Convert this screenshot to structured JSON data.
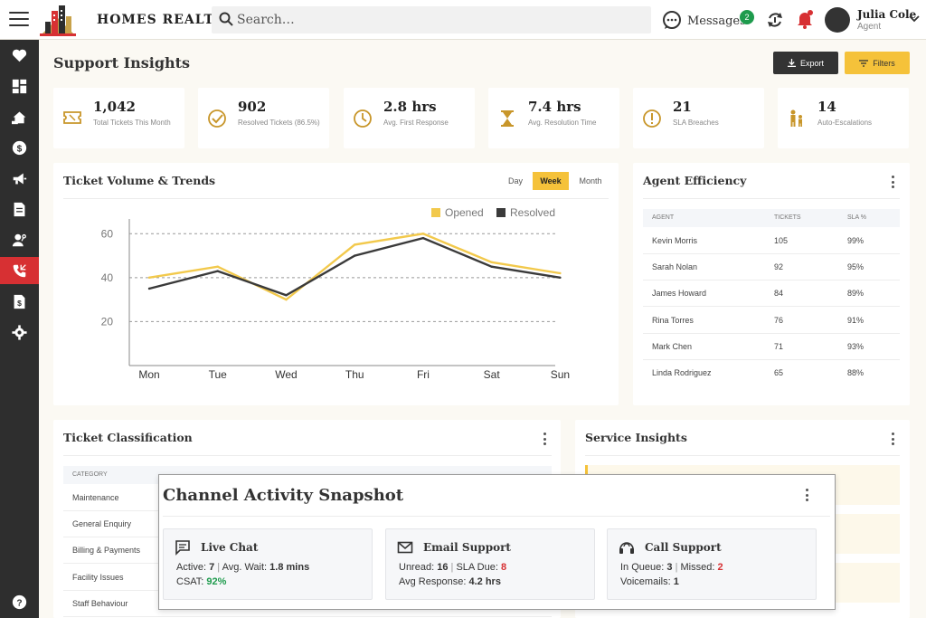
{
  "header": {
    "brand": "HOMES REALTY",
    "search_placeholder": "Search…",
    "messages_label": "Messages",
    "messages_count": "2",
    "user_name": "Julia Cole",
    "user_role": "Agent"
  },
  "sidebar": {
    "icons": [
      "heart-icon",
      "dashboard-icon",
      "properties-icon",
      "finance-icon",
      "megaphone-icon",
      "document-icon",
      "user-key-icon",
      "phone-support-icon",
      "invoice-icon",
      "gear-icon"
    ],
    "active_index": 7,
    "help_icon": "help-icon"
  },
  "page": {
    "title": "Support Insights",
    "export_label": "Export",
    "filters_label": "Filters"
  },
  "kpis": [
    {
      "icon": "ticket-icon",
      "value": "1,042",
      "label": "Total Tickets This Month"
    },
    {
      "icon": "check-circle-icon",
      "value": "902",
      "label": "Resolved Tickets (86.5%)"
    },
    {
      "icon": "clock-icon",
      "value": "2.8 hrs",
      "label": "Avg. First Response"
    },
    {
      "icon": "hourglass-icon",
      "value": "7.4 hrs",
      "label": "Avg. Resolution Time"
    },
    {
      "icon": "alert-circle-icon",
      "value": "21",
      "label": "SLA Breaches"
    },
    {
      "icon": "escalation-icon",
      "value": "14",
      "label": "Auto-Escalations"
    }
  ],
  "volume_card": {
    "title": "Ticket Volume & Trends",
    "periods": [
      "Day",
      "Week",
      "Month"
    ],
    "active_period": "Week"
  },
  "chart_data": {
    "type": "line",
    "title": "",
    "xlabel": "",
    "ylabel": "",
    "categories": [
      "Mon",
      "Tue",
      "Wed",
      "Thu",
      "Fri",
      "Sat",
      "Sun"
    ],
    "yticks": [
      20,
      40,
      60
    ],
    "ylim": [
      0,
      70
    ],
    "grid": true,
    "legend": "top-right",
    "series": [
      {
        "name": "Opened",
        "color": "#f2c94c",
        "values": [
          40,
          45,
          30,
          55,
          60,
          47,
          42
        ]
      },
      {
        "name": "Resolved",
        "color": "#3a3a3a",
        "values": [
          35,
          43,
          32,
          50,
          58,
          45,
          40
        ]
      }
    ]
  },
  "agent_card": {
    "title": "Agent Efficiency",
    "columns": [
      "AGENT",
      "TICKETS",
      "SLA %"
    ],
    "rows": [
      [
        "Kevin Morris",
        "105",
        "99%"
      ],
      [
        "Sarah Nolan",
        "92",
        "95%"
      ],
      [
        "James Howard",
        "84",
        "89%"
      ],
      [
        "Rina Torres",
        "76",
        "91%"
      ],
      [
        "Mark Chen",
        "71",
        "93%"
      ],
      [
        "Linda Rodriguez",
        "65",
        "88%"
      ]
    ]
  },
  "classification_card": {
    "title": "Ticket Classification",
    "column": "CATEGORY",
    "rows": [
      "Maintenance",
      "General Enquiry",
      "Billing & Payments",
      "Facility Issues",
      "Staff Behaviour"
    ]
  },
  "service_card": {
    "title": "Service Insights"
  },
  "snapshot": {
    "title": "Channel Activity Snapshot",
    "live_chat": {
      "title": "Live Chat",
      "active_label": "Active:",
      "active_value": "7",
      "wait_label": "Avg. Wait:",
      "wait_value": "1.8 mins",
      "csat_label": "CSAT:",
      "csat_value": "92%"
    },
    "email": {
      "title": "Email Support",
      "unread_label": "Unread:",
      "unread_value": "16",
      "sla_label": "SLA Due:",
      "sla_value": "8",
      "avg_label": "Avg Response:",
      "avg_value": "4.2 hrs"
    },
    "call": {
      "title": "Call Support",
      "queue_label": "In Queue:",
      "queue_value": "3",
      "missed_label": "Missed:",
      "missed_value": "2",
      "voicemail_label": "Voicemails:",
      "voicemail_value": "1"
    }
  },
  "colors": {
    "accent": "#f5c23a",
    "sidebar": "#2e2e2e",
    "active_nav": "#d73033",
    "success": "#1e9b4d",
    "danger": "#d73033"
  }
}
